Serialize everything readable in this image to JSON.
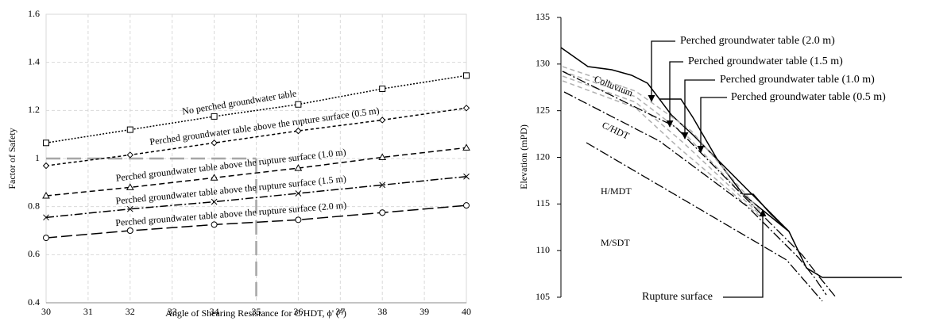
{
  "chart_data": [
    {
      "type": "line",
      "x_label": "Angle of Shearing Resistance for C/HDT, ϕ' (°)",
      "y_label": "Factor of Safety",
      "xlim": [
        30,
        40
      ],
      "xticks": [
        30,
        31,
        32,
        33,
        34,
        35,
        36,
        37,
        38,
        39,
        40
      ],
      "ylim": [
        0.4,
        1.6
      ],
      "yticks": [
        0.4,
        0.6,
        0.8,
        1,
        1.2,
        1.4,
        1.6
      ],
      "grid": true,
      "x": [
        30,
        32,
        34,
        36,
        38,
        40
      ],
      "series": [
        {
          "name": "No perched groundwater table",
          "color": "#000000",
          "marker": "square",
          "dash": "dotted",
          "values": [
            1.065,
            1.12,
            1.175,
            1.225,
            1.29,
            1.345
          ]
        },
        {
          "name": "Perched groundwater table above the rupture surface (0.5 m)",
          "color": "#000000",
          "marker": "diamond",
          "dash": "short",
          "values": [
            0.97,
            1.015,
            1.065,
            1.115,
            1.16,
            1.21
          ]
        },
        {
          "name": "Perched groundwater table above the rupture surface (1.0 m)",
          "color": "#000000",
          "marker": "triangle",
          "dash": "medium",
          "values": [
            0.845,
            0.88,
            0.92,
            0.96,
            1.005,
            1.045
          ]
        },
        {
          "name": "Perched groundwater table above the rupture surface (1.5 m)",
          "color": "#000000",
          "marker": "x",
          "dash": "dashdot",
          "values": [
            0.755,
            0.79,
            0.82,
            0.855,
            0.89,
            0.925
          ]
        },
        {
          "name": "Perched groundwater table above the rupture surface (2.0 m)",
          "color": "#000000",
          "marker": "circle",
          "dash": "long",
          "values": [
            0.67,
            0.7,
            0.725,
            0.745,
            0.775,
            0.805
          ]
        }
      ],
      "reference": {
        "x": 35,
        "y": 1,
        "color": "#a6a6a6"
      }
    },
    {
      "type": "cross-section",
      "y_label": "Elevation (mPD)",
      "ylim": [
        105,
        135
      ],
      "yticks": [
        105,
        110,
        115,
        120,
        125,
        130,
        135
      ],
      "annotations": [
        "Perched groundwater table (2.0 m)",
        "Perched groundwater table (1.5 m)",
        "Perched groundwater table (1.0 m)",
        "Perched groundwater table (0.5 m)",
        "Colluvium",
        "C/HDT",
        "H/MDT",
        "M/SDT",
        "Rupture surface"
      ]
    }
  ]
}
